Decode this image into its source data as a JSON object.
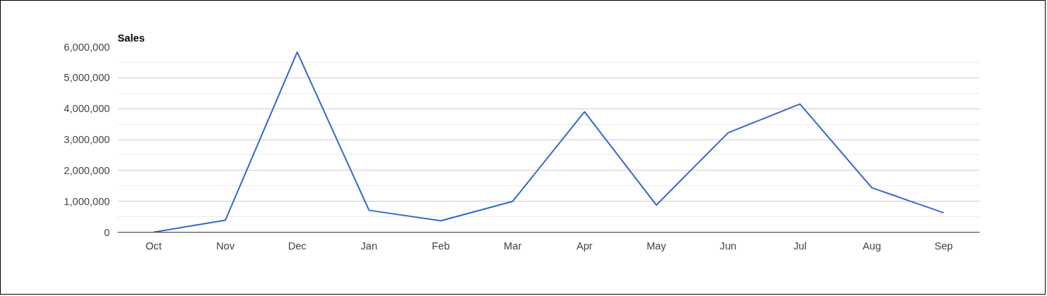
{
  "chart_data": {
    "type": "line",
    "title": "Sales",
    "categories": [
      "Oct",
      "Nov",
      "Dec",
      "Jan",
      "Feb",
      "Mar",
      "Apr",
      "May",
      "Jun",
      "Jul",
      "Aug",
      "Sep"
    ],
    "series": [
      {
        "color": "#3366cc",
        "values": [
          0,
          390000,
          5830000,
          710000,
          370000,
          1000000,
          3900000,
          880000,
          3220000,
          4150000,
          1440000,
          630000
        ]
      }
    ],
    "ylim": [
      0,
      6000000
    ],
    "yticks": [
      {
        "value": 0,
        "label": "0"
      },
      {
        "value": 1000000,
        "label": "1,000,000"
      },
      {
        "value": 2000000,
        "label": "2,000,000"
      },
      {
        "value": 3000000,
        "label": "3,000,000"
      },
      {
        "value": 4000000,
        "label": "4,000,000"
      },
      {
        "value": 5000000,
        "label": "5,000,000"
      },
      {
        "value": 6000000,
        "label": "6,000,000"
      }
    ],
    "grid": "y",
    "marker": "none",
    "line_style": "solid"
  }
}
